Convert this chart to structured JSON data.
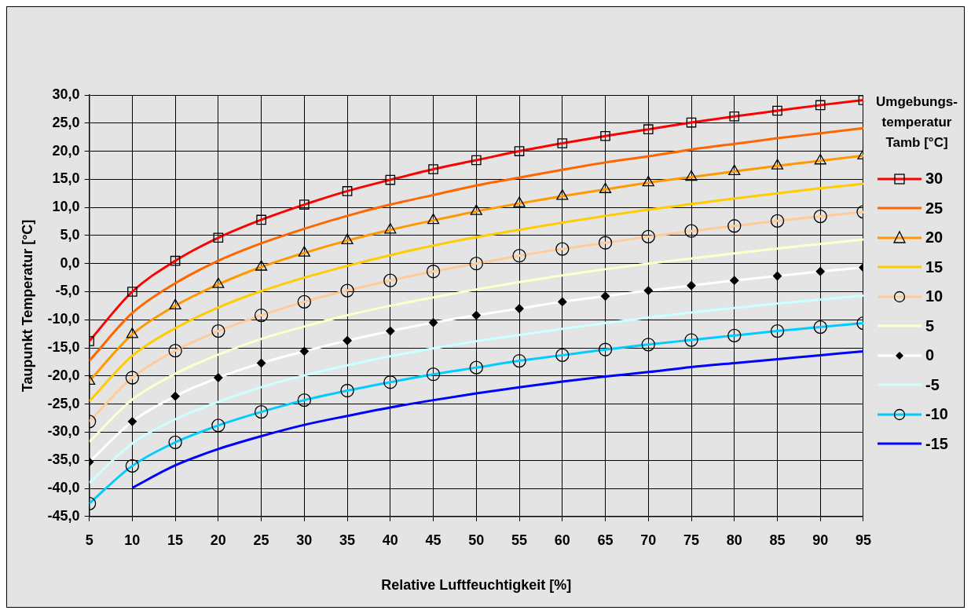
{
  "chart_data": {
    "type": "line",
    "xlabel": "Relative Luftfeuchtigkeit [%]",
    "ylabel": "Taupunkt Temperatur [°C]",
    "legend_title": "Umgebungs-temperatur Tamb [°C]",
    "legend": "right",
    "grid": true,
    "line_style": "solid",
    "x": [
      5,
      10,
      15,
      20,
      25,
      30,
      35,
      40,
      45,
      50,
      55,
      60,
      65,
      70,
      75,
      80,
      85,
      90,
      95
    ],
    "xlim": [
      5,
      95
    ],
    "xticks": [
      5,
      10,
      15,
      20,
      25,
      30,
      35,
      40,
      45,
      50,
      55,
      60,
      65,
      70,
      75,
      80,
      85,
      90,
      95
    ],
    "ylim": [
      -45,
      30
    ],
    "yticks": [
      {
        "value": -45,
        "label": "-45,0"
      },
      {
        "value": -40,
        "label": "-40,0"
      },
      {
        "value": -35,
        "label": "-35,0"
      },
      {
        "value": -30,
        "label": "-30,0"
      },
      {
        "value": -25,
        "label": "-25,0"
      },
      {
        "value": -20,
        "label": "-20,0"
      },
      {
        "value": -15,
        "label": "-15,0"
      },
      {
        "value": -10,
        "label": "-10,0"
      },
      {
        "value": -5,
        "label": "-5,0"
      },
      {
        "value": 0,
        "label": "0,0"
      },
      {
        "value": 5,
        "label": "5,0"
      },
      {
        "value": 10,
        "label": "10,0"
      },
      {
        "value": 15,
        "label": "15,0"
      },
      {
        "value": 20,
        "label": "20,0"
      },
      {
        "value": 25,
        "label": "25,0"
      },
      {
        "value": 30,
        "label": "30,0"
      }
    ],
    "series": [
      {
        "name": "30",
        "color": "#ff0000",
        "marker": "square",
        "values": [
          -13.8,
          -5.0,
          0.5,
          4.6,
          7.8,
          10.5,
          12.9,
          14.9,
          16.8,
          18.4,
          20.0,
          21.4,
          22.7,
          23.9,
          25.1,
          26.2,
          27.2,
          28.2,
          29.1
        ]
      },
      {
        "name": "25",
        "color": "#ff6600",
        "marker": "none",
        "values": [
          -17.3,
          -8.8,
          -3.5,
          0.5,
          3.6,
          6.2,
          8.5,
          10.5,
          12.2,
          13.9,
          15.3,
          16.7,
          18.0,
          19.1,
          20.3,
          21.3,
          22.3,
          23.2,
          24.1
        ]
      },
      {
        "name": "20",
        "color": "#ff9900",
        "marker": "triangle",
        "values": [
          -20.9,
          -12.6,
          -7.5,
          -3.7,
          -0.6,
          1.9,
          4.1,
          6.0,
          7.7,
          9.3,
          10.7,
          12.0,
          13.2,
          14.4,
          15.4,
          16.4,
          17.4,
          18.3,
          19.2
        ]
      },
      {
        "name": "15",
        "color": "#ffcc00",
        "marker": "none",
        "values": [
          -24.5,
          -16.4,
          -11.5,
          -7.8,
          -4.9,
          -2.5,
          -0.4,
          1.5,
          3.2,
          4.7,
          6.0,
          7.3,
          8.5,
          9.6,
          10.6,
          11.6,
          12.5,
          13.4,
          14.2
        ]
      },
      {
        "name": "10",
        "color": "#ffcc99",
        "marker": "circle",
        "values": [
          -28.1,
          -20.3,
          -15.5,
          -12.0,
          -9.2,
          -6.8,
          -4.8,
          -3.0,
          -1.4,
          0.0,
          1.4,
          2.6,
          3.7,
          4.8,
          5.8,
          6.7,
          7.6,
          8.4,
          9.2
        ]
      },
      {
        "name": "5",
        "color": "#ffffcc",
        "marker": "none",
        "values": [
          -31.7,
          -24.2,
          -19.6,
          -16.2,
          -13.4,
          -11.2,
          -9.2,
          -7.5,
          -6.0,
          -4.6,
          -3.3,
          -2.1,
          -1.0,
          0.0,
          0.9,
          1.8,
          2.7,
          3.5,
          4.3
        ]
      },
      {
        "name": "0",
        "color": "#ffffff",
        "marker": "diamond",
        "values": [
          -35.3,
          -28.1,
          -23.6,
          -20.3,
          -17.7,
          -15.6,
          -13.7,
          -12.0,
          -10.5,
          -9.2,
          -8.0,
          -6.8,
          -5.8,
          -4.8,
          -3.9,
          -3.0,
          -2.2,
          -1.4,
          -0.7
        ]
      },
      {
        "name": "-5",
        "color": "#ccffff",
        "marker": "none",
        "values": [
          -39.0,
          -32.0,
          -27.7,
          -24.6,
          -22.0,
          -19.9,
          -18.1,
          -16.5,
          -15.1,
          -13.8,
          -12.7,
          -11.6,
          -10.6,
          -9.6,
          -8.7,
          -7.9,
          -7.1,
          -6.4,
          -5.7
        ]
      },
      {
        "name": "-10",
        "color": "#00ccff",
        "marker": "circle",
        "values": [
          -42.7,
          -36.0,
          -31.8,
          -28.8,
          -26.4,
          -24.3,
          -22.6,
          -21.1,
          -19.7,
          -18.5,
          -17.3,
          -16.3,
          -15.3,
          -14.4,
          -13.6,
          -12.8,
          -12.0,
          -11.3,
          -10.6
        ]
      },
      {
        "name": "-15",
        "color": "#0000ff",
        "marker": "none",
        "values": [
          null,
          -39.9,
          -35.9,
          -33.0,
          -30.7,
          -28.7,
          -27.1,
          -25.6,
          -24.3,
          -23.1,
          -22.0,
          -21.0,
          -20.1,
          -19.3,
          -18.4,
          -17.7,
          -17.0,
          -16.3,
          -15.6
        ]
      }
    ]
  }
}
